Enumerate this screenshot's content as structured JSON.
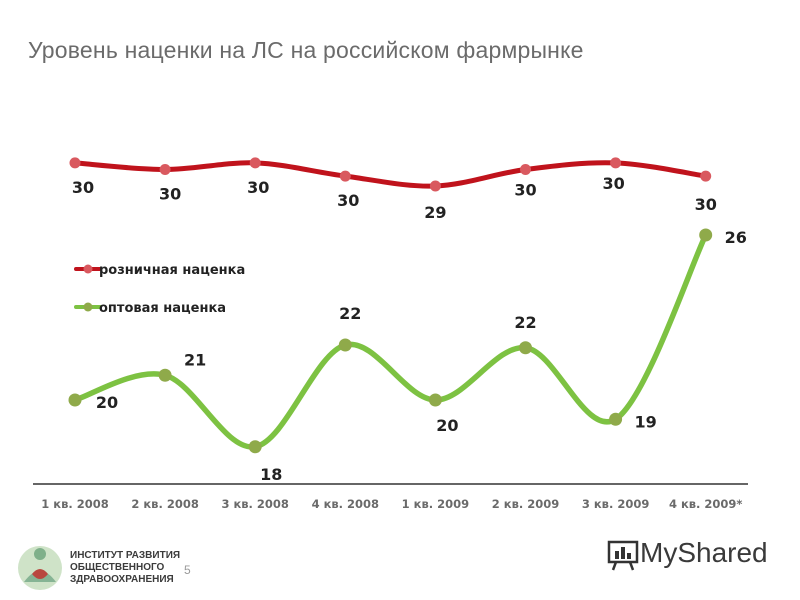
{
  "page": {
    "title": "Уровень наценки на ЛС на российском фармрынке",
    "page_number": "5",
    "logo_lines": [
      "ИНСТИТУТ РАЗВИТИЯ",
      "ОБЩЕСТВЕННОГО",
      "ЗДРАВООХРАНЕНИЯ"
    ],
    "watermark": "MyShared"
  },
  "chart_data": {
    "type": "line",
    "categories": [
      "1 кв. 2008",
      "2 кв. 2008",
      "3 кв. 2008",
      "4 кв. 2008",
      "1 кв. 2009",
      "2 кв. 2009",
      "3 кв. 2009",
      "4 кв. 2009*"
    ],
    "series": [
      {
        "name": "розничная наценка",
        "color": "#c0131c",
        "marker_color": "#d9595f",
        "values": [
          30,
          30,
          30,
          30,
          29,
          30,
          30,
          30
        ],
        "display_values": [
          30.2,
          30.0,
          30.2,
          29.8,
          29.5,
          30.0,
          30.2,
          29.8
        ]
      },
      {
        "name": "оптовая наценка",
        "color": "#7dc242",
        "marker_color": "#8faa4a",
        "values": [
          20,
          21,
          18,
          22,
          20,
          22,
          19,
          26
        ],
        "display_values": [
          20.0,
          20.9,
          18.3,
          22.0,
          20.0,
          21.9,
          19.3,
          26.0
        ]
      }
    ],
    "legend_position": "left",
    "grid": false
  }
}
